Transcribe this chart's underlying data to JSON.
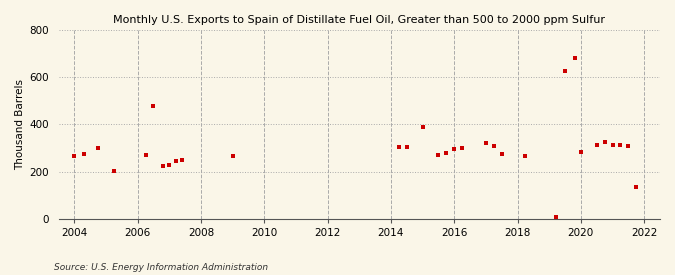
{
  "title": "Monthly U.S. Exports to Spain of Distillate Fuel Oil, Greater than 500 to 2000 ppm Sulfur",
  "ylabel": "Thousand Barrels",
  "source": "Source: U.S. Energy Information Administration",
  "background_color": "#faf6e8",
  "marker_color": "#cc0000",
  "xlim": [
    2003.5,
    2022.5
  ],
  "ylim": [
    0,
    800
  ],
  "yticks": [
    0,
    200,
    400,
    600,
    800
  ],
  "xticks": [
    2004,
    2006,
    2008,
    2010,
    2012,
    2014,
    2016,
    2018,
    2020,
    2022
  ],
  "data_points": [
    [
      2004.0,
      265
    ],
    [
      2004.3,
      275
    ],
    [
      2004.75,
      300
    ],
    [
      2005.25,
      205
    ],
    [
      2006.25,
      270
    ],
    [
      2006.5,
      480
    ],
    [
      2006.8,
      225
    ],
    [
      2007.0,
      230
    ],
    [
      2007.2,
      245
    ],
    [
      2007.4,
      250
    ],
    [
      2009.0,
      265
    ],
    [
      2014.25,
      305
    ],
    [
      2014.5,
      305
    ],
    [
      2015.0,
      390
    ],
    [
      2015.5,
      270
    ],
    [
      2015.75,
      280
    ],
    [
      2016.0,
      295
    ],
    [
      2016.25,
      300
    ],
    [
      2017.0,
      320
    ],
    [
      2017.25,
      310
    ],
    [
      2017.5,
      275
    ],
    [
      2018.25,
      265
    ],
    [
      2019.2,
      10
    ],
    [
      2019.5,
      625
    ],
    [
      2019.8,
      680
    ],
    [
      2020.0,
      285
    ],
    [
      2020.5,
      315
    ],
    [
      2020.75,
      325
    ],
    [
      2021.0,
      315
    ],
    [
      2021.25,
      315
    ],
    [
      2021.5,
      310
    ],
    [
      2021.75,
      135
    ]
  ]
}
